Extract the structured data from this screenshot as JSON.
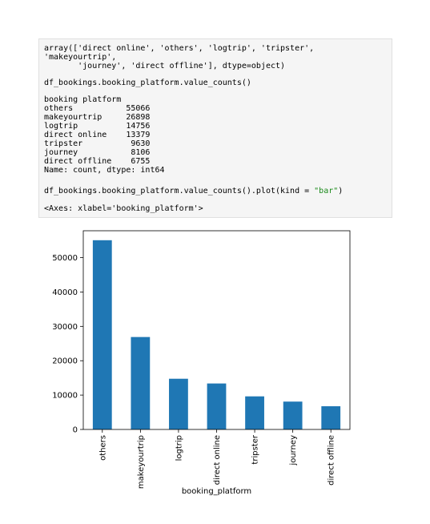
{
  "notebook": {
    "array_output": [
      "array(['direct online', 'others', 'logtrip', 'tripster',",
      "'makeyourtrip',",
      "       'journey', 'direct offline'], dtype=object)"
    ],
    "input_value_counts": "df_bookings.booking_platform.value_counts()",
    "value_counts_output": [
      "booking platform",
      "others           55066",
      "makeyourtrip     26898",
      "logtrip          14756",
      "direct online    13379",
      "tripster          9630",
      "journey           8106",
      "direct offline    6755",
      "Name: count, dtype: int64"
    ],
    "input_plot_prefix": "df_bookings.booking_platform.value_counts().plot(kind = ",
    "input_plot_string": "\"bar\"",
    "input_plot_suffix": ")",
    "axes_output": "<Axes: xlabel='booking_platform'>"
  },
  "chart_data": {
    "type": "bar",
    "categories": [
      "others",
      "makeyourtrip",
      "logtrip",
      "direct online",
      "tripster",
      "journey",
      "direct offline"
    ],
    "values": [
      55066,
      26898,
      14756,
      13379,
      9630,
      8106,
      6755
    ],
    "xlabel": "booking_platform",
    "ylabel": "",
    "ylim": [
      0,
      57820
    ],
    "yticks": [
      0,
      10000,
      20000,
      30000,
      40000,
      50000
    ],
    "bar_color": "#1f77b4",
    "grid": false
  }
}
